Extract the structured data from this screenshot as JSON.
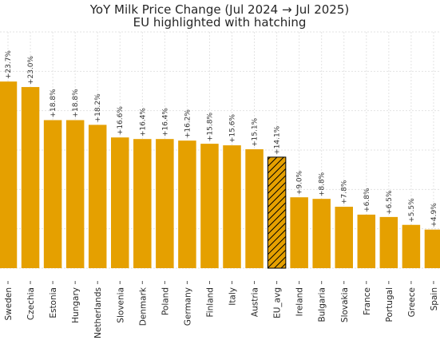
{
  "chart_data": {
    "type": "bar",
    "title": "YoY Milk Price Change (Jul 2024 → Jul 2025)",
    "subtitle": "EU highlighted with hatching",
    "xlabel": "",
    "ylabel": "",
    "categories": [
      "Sweden",
      "Czechia",
      "Estonia",
      "Hungary",
      "Netherlands",
      "Slovenia",
      "Denmark",
      "Poland",
      "Germany",
      "Finland",
      "Italy",
      "Austria",
      "EU_avg",
      "Ireland",
      "Bulgaria",
      "Slovakia",
      "France",
      "Portugal",
      "Greece",
      "Spain"
    ],
    "values": [
      23.7,
      23.0,
      18.8,
      18.8,
      18.2,
      16.6,
      16.4,
      16.4,
      16.2,
      15.8,
      15.6,
      15.1,
      14.1,
      9.0,
      8.8,
      7.8,
      6.8,
      6.5,
      5.5,
      4.9
    ],
    "labels": [
      "+23.7%",
      "+23.0%",
      "+18.8%",
      "+18.8%",
      "+18.2%",
      "+16.6%",
      "+16.4%",
      "+16.4%",
      "+16.2%",
      "+15.8%",
      "+15.6%",
      "+15.1%",
      "+14.1%",
      "+9.0%",
      "+8.8%",
      "+7.8%",
      "+6.8%",
      "+6.5%",
      "+5.5%",
      "+4.9%"
    ],
    "highlight": "EU_avg",
    "ylim": [
      0,
      30
    ],
    "grid": true,
    "bar_color": "#E5A000",
    "highlight_pattern": "hatch"
  }
}
